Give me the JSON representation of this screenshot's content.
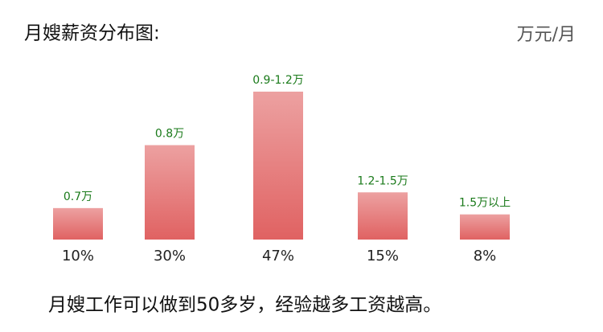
{
  "chart_data": {
    "type": "bar",
    "title": "月嫂薪资分布图:",
    "unit_label": "万元/月",
    "categories": [
      "0.7万",
      "0.8万",
      "0.9-1.2万",
      "1.2-1.5万",
      "1.5万以上"
    ],
    "values": [
      10,
      30,
      47,
      15,
      8
    ],
    "value_labels": [
      "10%",
      "30%",
      "47%",
      "15%",
      "8%"
    ],
    "color": "#e06262",
    "note": "月嫂工作可以做到50多岁，经验越多工资越高。"
  }
}
